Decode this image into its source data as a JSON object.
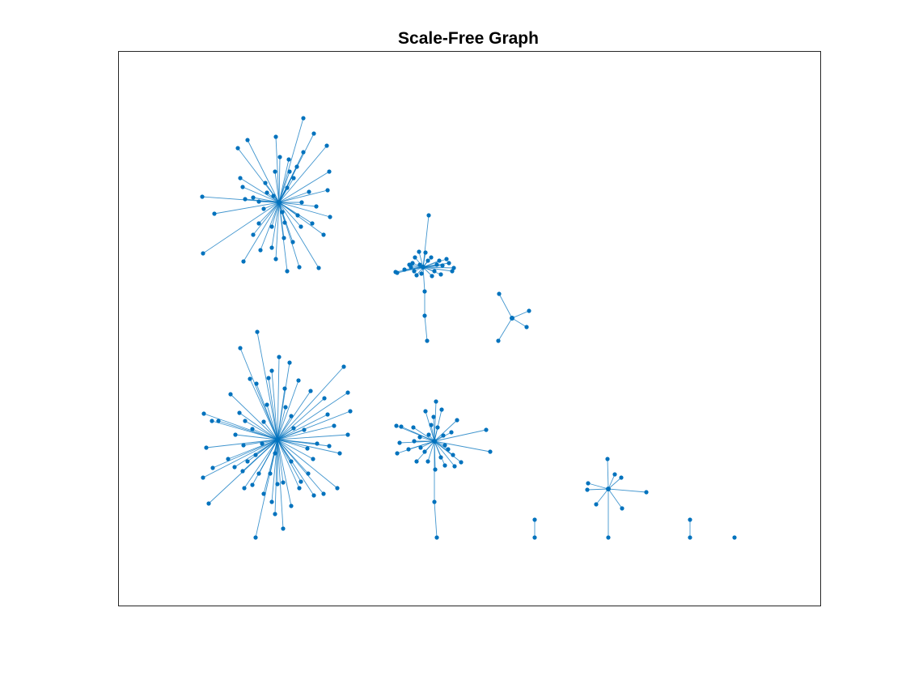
{
  "title": "Scale-Free Graph",
  "chart_data": {
    "type": "graph",
    "title": "Scale-Free Graph",
    "xlabel": "",
    "ylabel": "",
    "axis_ticks": "none",
    "grid": false,
    "colors": {
      "edge": "#0072BD",
      "node": "#0072BD",
      "axes": "#262626",
      "background": "#ffffff"
    },
    "components": [
      {
        "id": "A",
        "type": "star",
        "hub": [
          345,
          250
        ],
        "leaves": [
          [
            250,
            243
          ],
          [
            265,
            264
          ],
          [
            251,
            313
          ],
          [
            301,
            323
          ],
          [
            313,
            290
          ],
          [
            320,
            249
          ],
          [
            297,
            220
          ],
          [
            294,
            183
          ],
          [
            306,
            173
          ],
          [
            341,
            169
          ],
          [
            375,
            146
          ],
          [
            388,
            165
          ],
          [
            404,
            180
          ],
          [
            407,
            212
          ],
          [
            405,
            235
          ],
          [
            408,
            268
          ],
          [
            400,
            290
          ],
          [
            394,
            331
          ],
          [
            370,
            330
          ],
          [
            355,
            335
          ],
          [
            341,
            320
          ],
          [
            336,
            306
          ],
          [
            322,
            309
          ],
          [
            375,
            188
          ],
          [
            363,
            220
          ],
          [
            358,
            212
          ],
          [
            330,
            238
          ],
          [
            313,
            244
          ],
          [
            326,
            258
          ],
          [
            320,
            276
          ],
          [
            336,
            280
          ],
          [
            352,
            275
          ],
          [
            368,
            266
          ],
          [
            373,
            250
          ],
          [
            382,
            237
          ],
          [
            355,
            232
          ],
          [
            340,
            212
          ],
          [
            346,
            194
          ],
          [
            357,
            197
          ],
          [
            367,
            206
          ],
          [
            372,
            280
          ],
          [
            362,
            299
          ],
          [
            351,
            294
          ],
          [
            386,
            276
          ],
          [
            391,
            255
          ],
          [
            328,
            226
          ],
          [
            300,
            231
          ],
          [
            338,
            242
          ],
          [
            349,
            262
          ],
          [
            303,
            246
          ]
        ]
      },
      {
        "id": "B",
        "type": "clustered",
        "hub": [
          523,
          330
        ],
        "leaves": [
          [
            530,
            266
          ],
          [
            525,
            390
          ],
          [
            528,
            421
          ],
          [
            491,
            337
          ],
          [
            489,
            336
          ],
          [
            559,
            335
          ],
          [
            561,
            331
          ],
          [
            510,
            325
          ],
          [
            513,
            318
          ],
          [
            518,
            311
          ],
          [
            533,
            318
          ],
          [
            540,
            327
          ],
          [
            547,
            328
          ],
          [
            552,
            320
          ],
          [
            515,
            340
          ],
          [
            508,
            330
          ],
          [
            506,
            327
          ],
          [
            537,
            335
          ],
          [
            545,
            339
          ],
          [
            534,
            341
          ],
          [
            529,
            322
          ],
          [
            519,
            327
          ],
          [
            500,
            333
          ],
          [
            526,
            312
          ],
          [
            543,
            322
          ],
          [
            555,
            325
          ],
          [
            512,
            335
          ],
          [
            521,
            338
          ]
        ],
        "chains": [
          [
            [
              523,
              330
            ],
            [
              525,
              360
            ],
            [
              525,
              390
            ],
            [
              528,
              421
            ]
          ]
        ]
      },
      {
        "id": "C",
        "type": "star",
        "hub": [
          633,
          393
        ],
        "leaves": [
          [
            617,
            363
          ],
          [
            654,
            384
          ],
          [
            651,
            404
          ],
          [
            616,
            421
          ]
        ]
      },
      {
        "id": "D",
        "type": "star",
        "hub": [
          343,
          543
        ],
        "leaves": [
          [
            318,
            410
          ],
          [
            297,
            430
          ],
          [
            345,
            441
          ],
          [
            425,
            453
          ],
          [
            430,
            485
          ],
          [
            433,
            508
          ],
          [
            430,
            537
          ],
          [
            420,
            560
          ],
          [
            417,
            603
          ],
          [
            400,
            610
          ],
          [
            388,
            612
          ],
          [
            360,
            625
          ],
          [
            350,
            653
          ],
          [
            340,
            635
          ],
          [
            316,
            664
          ],
          [
            302,
            603
          ],
          [
            258,
            622
          ],
          [
            251,
            590
          ],
          [
            263,
            578
          ],
          [
            255,
            553
          ],
          [
            252,
            511
          ],
          [
            262,
            520
          ],
          [
            270,
            520
          ],
          [
            291,
            537
          ],
          [
            296,
            510
          ],
          [
            285,
            487
          ],
          [
            309,
            468
          ],
          [
            317,
            474
          ],
          [
            332,
            467
          ],
          [
            336,
            458
          ],
          [
            358,
            448
          ],
          [
            369,
            470
          ],
          [
            384,
            483
          ],
          [
            401,
            492
          ],
          [
            405,
            512
          ],
          [
            413,
            526
          ],
          [
            407,
            551
          ],
          [
            392,
            548
          ],
          [
            387,
            567
          ],
          [
            381,
            585
          ],
          [
            372,
            595
          ],
          [
            350,
            596
          ],
          [
            334,
            585
          ],
          [
            326,
            610
          ],
          [
            312,
            599
          ],
          [
            300,
            582
          ],
          [
            306,
            570
          ],
          [
            316,
            562
          ],
          [
            324,
            548
          ],
          [
            312,
            530
          ],
          [
            301,
            550
          ],
          [
            303,
            520
          ],
          [
            330,
            500
          ],
          [
            353,
            503
          ],
          [
            360,
            514
          ],
          [
            363,
            529
          ],
          [
            376,
            531
          ],
          [
            380,
            554
          ],
          [
            360,
            570
          ],
          [
            340,
            560
          ],
          [
            320,
            585
          ],
          [
            290,
            577
          ],
          [
            282,
            567
          ],
          [
            352,
            480
          ],
          [
            326,
            521
          ],
          [
            370,
            603
          ],
          [
            336,
            620
          ],
          [
            343,
            598
          ]
        ]
      },
      {
        "id": "E",
        "type": "clustered",
        "hub": [
          537,
          545
        ],
        "leaves": [
          [
            490,
            526
          ],
          [
            496,
            527
          ],
          [
            539,
            496
          ],
          [
            565,
            519
          ],
          [
            601,
            531
          ],
          [
            606,
            558
          ],
          [
            570,
            571
          ],
          [
            562,
            576
          ],
          [
            550,
            575
          ],
          [
            538,
            580
          ],
          [
            515,
            570
          ],
          [
            491,
            560
          ],
          [
            494,
            547
          ],
          [
            511,
            528
          ],
          [
            526,
            508
          ],
          [
            546,
            506
          ],
          [
            558,
            534
          ],
          [
            550,
            550
          ],
          [
            520,
            553
          ],
          [
            530,
            537
          ],
          [
            525,
            558
          ],
          [
            545,
            565
          ],
          [
            512,
            545
          ],
          [
            505,
            555
          ],
          [
            560,
            562
          ],
          [
            548,
            538
          ],
          [
            533,
            525
          ],
          [
            529,
            570
          ],
          [
            541,
            528
          ],
          [
            554,
            555
          ],
          [
            519,
            540
          ],
          [
            536,
            515
          ],
          [
            537,
            620
          ],
          [
            540,
            664
          ]
        ],
        "chains": [
          [
            [
              537,
              545
            ],
            [
              537,
              620
            ],
            [
              540,
              664
            ]
          ]
        ]
      },
      {
        "id": "F",
        "type": "star",
        "hub": [
          752,
          604
        ],
        "leaves": [
          [
            751,
            567
          ],
          [
            760,
            586
          ],
          [
            768,
            590
          ],
          [
            799,
            608
          ],
          [
            769,
            628
          ],
          [
            737,
            623
          ],
          [
            726,
            605
          ],
          [
            727,
            597
          ],
          [
            752,
            664
          ]
        ]
      },
      {
        "id": "G",
        "type": "pair",
        "nodes": [
          [
            661,
            642
          ],
          [
            661,
            664
          ]
        ]
      },
      {
        "id": "H",
        "type": "pair",
        "nodes": [
          [
            853,
            642
          ],
          [
            853,
            664
          ]
        ]
      },
      {
        "id": "I",
        "type": "isolated",
        "nodes": [
          [
            908,
            664
          ]
        ]
      }
    ]
  }
}
